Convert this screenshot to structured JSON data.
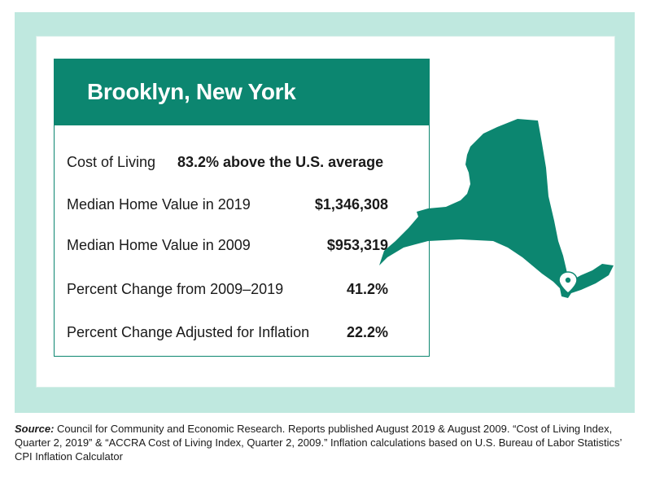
{
  "title": "Brooklyn, New York",
  "rows": [
    {
      "label": "Cost of Living",
      "value": "83.2% above the U.S. average"
    },
    {
      "label": "Median Home Value in 2019",
      "value": "$1,346,308"
    },
    {
      "label": "Median Home Value in 2009",
      "value": "$953,319"
    },
    {
      "label": "Percent Change from 2009–2019",
      "value": "41.2%"
    },
    {
      "label": "Percent Change Adjusted for Inflation",
      "value": "22.2%"
    }
  ],
  "source": {
    "label": "Source:",
    "text": "Council for Community and Economic Research. Reports published August 2019 & August 2009. “Cost of Living Index, Quarter 2, 2019” & “ACCRA Cost of Living Index, Quarter 2, 2009.” Inflation calculations based on U.S. Bureau of Labor Statistics’ CPI Inflation Calculator"
  },
  "colors": {
    "brand_green": "#0c8670",
    "mint": "#bfe8df"
  },
  "icons": {
    "map": "new-york-state-map-icon",
    "pin": "location-pin-icon"
  }
}
